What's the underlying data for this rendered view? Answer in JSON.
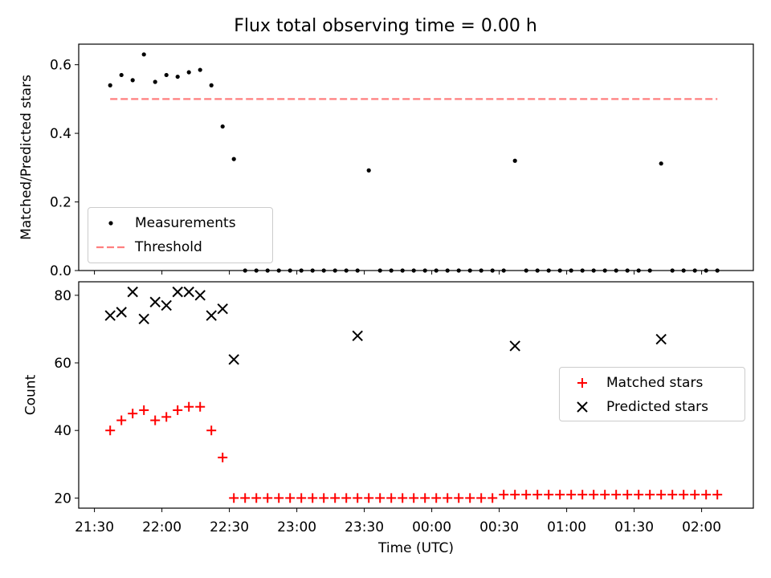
{
  "chart_data": [
    {
      "type": "scatter",
      "title": "Flux total observing time = 0.00 h",
      "ylabel": "Matched/Predicted stars",
      "xlabel": "",
      "ylim": [
        0,
        0.66
      ],
      "yticks": [
        "0.0",
        "0.2",
        "0.4",
        "0.6"
      ],
      "ytick_values": [
        0,
        0.2,
        0.4,
        0.6
      ],
      "xlim": [
        "21:23",
        "02:23"
      ],
      "xticks_visible_labels": false,
      "legend_position": "lower-left",
      "series": [
        {
          "name": "Measurements",
          "marker": "dot",
          "color": "#000000",
          "x": [
            "21:37",
            "21:42",
            "21:47",
            "21:52",
            "21:57",
            "22:02",
            "22:07",
            "22:12",
            "22:17",
            "22:22",
            "22:27",
            "22:32",
            "22:37",
            "22:42",
            "22:47",
            "22:52",
            "22:57",
            "23:02",
            "23:07",
            "23:12",
            "23:17",
            "23:22",
            "23:27",
            "23:32",
            "23:37",
            "23:42",
            "23:47",
            "23:52",
            "23:57",
            "00:02",
            "00:07",
            "00:12",
            "00:17",
            "00:22",
            "00:27",
            "00:32",
            "00:37",
            "00:42",
            "00:47",
            "00:52",
            "00:57",
            "01:02",
            "01:07",
            "01:12",
            "01:17",
            "01:22",
            "01:27",
            "01:32",
            "01:37",
            "01:42",
            "01:47",
            "01:52",
            "01:57",
            "02:02",
            "02:07"
          ],
          "y": [
            0.54,
            0.57,
            0.555,
            0.63,
            0.55,
            0.57,
            0.565,
            0.578,
            0.585,
            0.54,
            0.42,
            0.325,
            0,
            0,
            0,
            0,
            0,
            0,
            0,
            0,
            0,
            0,
            0,
            0.292,
            0,
            0,
            0,
            0,
            0,
            0,
            0,
            0,
            0,
            0,
            0,
            0,
            0.32,
            0,
            0,
            0,
            0,
            0,
            0,
            0,
            0,
            0,
            0,
            0,
            0,
            0.312,
            0,
            0,
            0,
            0,
            0
          ]
        },
        {
          "name": "Threshold",
          "style": "dashed",
          "color": "#ff7f7f",
          "x": [
            "21:37",
            "02:07"
          ],
          "y": [
            0.5,
            0.5
          ]
        }
      ]
    },
    {
      "type": "scatter",
      "title": "",
      "ylabel": "Count",
      "xlabel": "Time (UTC)",
      "ylim": [
        17,
        84
      ],
      "yticks": [
        "20",
        "40",
        "60",
        "80"
      ],
      "ytick_values": [
        20,
        40,
        60,
        80
      ],
      "xlim": [
        "21:23",
        "02:23"
      ],
      "xticks": [
        "21:30",
        "22:00",
        "22:30",
        "23:00",
        "23:30",
        "00:00",
        "00:30",
        "01:00",
        "01:30",
        "02:00"
      ],
      "legend_position": "center-right",
      "series": [
        {
          "name": "Matched stars",
          "marker": "plus",
          "color": "#ff0000",
          "x": [
            "21:37",
            "21:42",
            "21:47",
            "21:52",
            "21:57",
            "22:02",
            "22:07",
            "22:12",
            "22:17",
            "22:22",
            "22:27",
            "22:32",
            "22:37",
            "22:42",
            "22:47",
            "22:52",
            "22:57",
            "23:02",
            "23:07",
            "23:12",
            "23:17",
            "23:22",
            "23:27",
            "23:32",
            "23:37",
            "23:42",
            "23:47",
            "23:52",
            "23:57",
            "00:02",
            "00:07",
            "00:12",
            "00:17",
            "00:22",
            "00:27",
            "00:32",
            "00:37",
            "00:42",
            "00:47",
            "00:52",
            "00:57",
            "01:02",
            "01:07",
            "01:12",
            "01:17",
            "01:22",
            "01:27",
            "01:32",
            "01:37",
            "01:42",
            "01:47",
            "01:52",
            "01:57",
            "02:02",
            "02:07"
          ],
          "y": [
            40,
            43,
            45,
            46,
            43,
            44,
            46,
            47,
            47,
            40,
            32,
            20,
            20,
            20,
            20,
            20,
            20,
            20,
            20,
            20,
            20,
            20,
            20,
            20,
            20,
            20,
            20,
            20,
            20,
            20,
            20,
            20,
            20,
            20,
            20,
            21,
            21,
            21,
            21,
            21,
            21,
            21,
            21,
            21,
            21,
            21,
            21,
            21,
            21,
            21,
            21,
            21,
            21,
            21,
            21
          ]
        },
        {
          "name": "Predicted stars",
          "marker": "x",
          "color": "#000000",
          "x": [
            "21:37",
            "21:42",
            "21:47",
            "21:52",
            "21:57",
            "22:02",
            "22:07",
            "22:12",
            "22:17",
            "22:22",
            "22:27",
            "22:32",
            "23:27",
            "00:37",
            "01:42"
          ],
          "y": [
            74,
            75,
            81,
            73,
            78,
            77,
            81,
            81,
            80,
            74,
            76,
            61,
            68,
            65,
            67
          ]
        }
      ]
    }
  ]
}
